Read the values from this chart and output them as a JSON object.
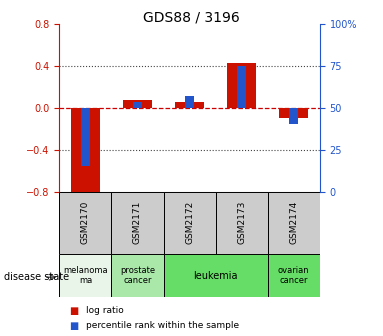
{
  "title": "GDS88 / 3196",
  "samples": [
    "GSM2170",
    "GSM2171",
    "GSM2172",
    "GSM2173",
    "GSM2174"
  ],
  "log_ratio": [
    -0.86,
    0.07,
    0.05,
    0.42,
    -0.1
  ],
  "percentile_rank": [
    15,
    53,
    57,
    75,
    40
  ],
  "disease_states": [
    {
      "label": "melanoma\nma",
      "span": [
        0,
        1
      ],
      "color": "#e8f5e8"
    },
    {
      "label": "prostate\ncancer",
      "span": [
        1,
        2
      ],
      "color": "#aae8aa"
    },
    {
      "label": "leukemia",
      "span": [
        2,
        4
      ],
      "color": "#66dd66"
    },
    {
      "label": "ovarian\ncancer",
      "span": [
        4,
        5
      ],
      "color": "#66dd66"
    }
  ],
  "left_ylim": [
    -0.8,
    0.8
  ],
  "right_ylim": [
    0,
    100
  ],
  "left_yticks": [
    -0.8,
    -0.4,
    0.0,
    0.4,
    0.8
  ],
  "right_yticks": [
    0,
    25,
    50,
    75,
    100
  ],
  "right_yticklabels": [
    "0",
    "25",
    "50",
    "75",
    "100%"
  ],
  "red_bar_width": 0.55,
  "blue_bar_width": 0.18,
  "red_color": "#cc1100",
  "blue_color": "#2255cc",
  "zero_line_color": "#cc0000",
  "dotted_line_color": "#444444",
  "plot_bg_color": "#ffffff",
  "legend_items": [
    {
      "label": "log ratio",
      "color": "#cc1100"
    },
    {
      "label": "percentile rank within the sample",
      "color": "#2255cc"
    }
  ],
  "disease_label": "disease state",
  "gsm_box_color": "#cccccc",
  "melanoma_color": "#e8f5e8"
}
